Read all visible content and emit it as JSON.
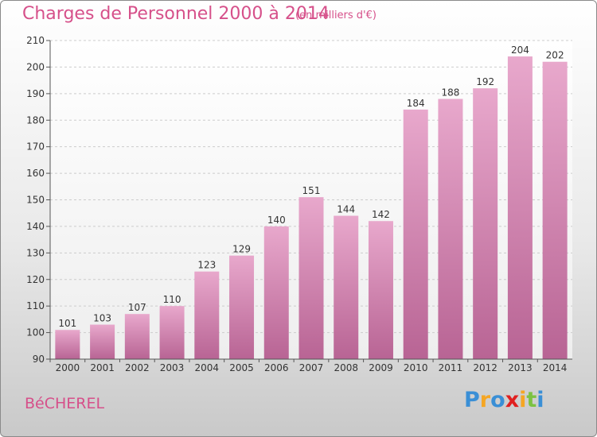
{
  "title": "Charges de Personnel 2000 à 2014",
  "subtitle": "(en milliers d'€)",
  "commune": "BéCHEREL",
  "logo": {
    "text": "Proxiti",
    "letters": [
      {
        "ch": "P",
        "color": "#3a8fd6"
      },
      {
        "ch": "r",
        "color": "#f5a623"
      },
      {
        "ch": "o",
        "color": "#3a8fd6"
      },
      {
        "ch": "x",
        "color": "#e02020"
      },
      {
        "ch": "i",
        "color": "#f5a623"
      },
      {
        "ch": "t",
        "color": "#7cc242"
      },
      {
        "ch": "i",
        "color": "#3a8fd6"
      }
    ]
  },
  "colors": {
    "accent": "#d6508a",
    "bar_light": "#e8a8cc",
    "bar_dark": "#c06898",
    "grid": "#cccccc",
    "axis": "#555555"
  },
  "chart_data": {
    "type": "bar",
    "title": "Charges de Personnel 2000 à 2014",
    "subtitle": "(en milliers d'€)",
    "categories": [
      "2000",
      "2001",
      "2002",
      "2003",
      "2004",
      "2005",
      "2006",
      "2007",
      "2008",
      "2009",
      "2010",
      "2011",
      "2012",
      "2013",
      "2014"
    ],
    "values": [
      101,
      103,
      107,
      110,
      123,
      129,
      140,
      151,
      144,
      142,
      184,
      188,
      192,
      204,
      202
    ],
    "ylim": [
      90,
      210
    ],
    "yticks": [
      90,
      100,
      110,
      120,
      130,
      140,
      150,
      160,
      170,
      180,
      190,
      200,
      210
    ],
    "grid": true,
    "data_labels": true
  }
}
